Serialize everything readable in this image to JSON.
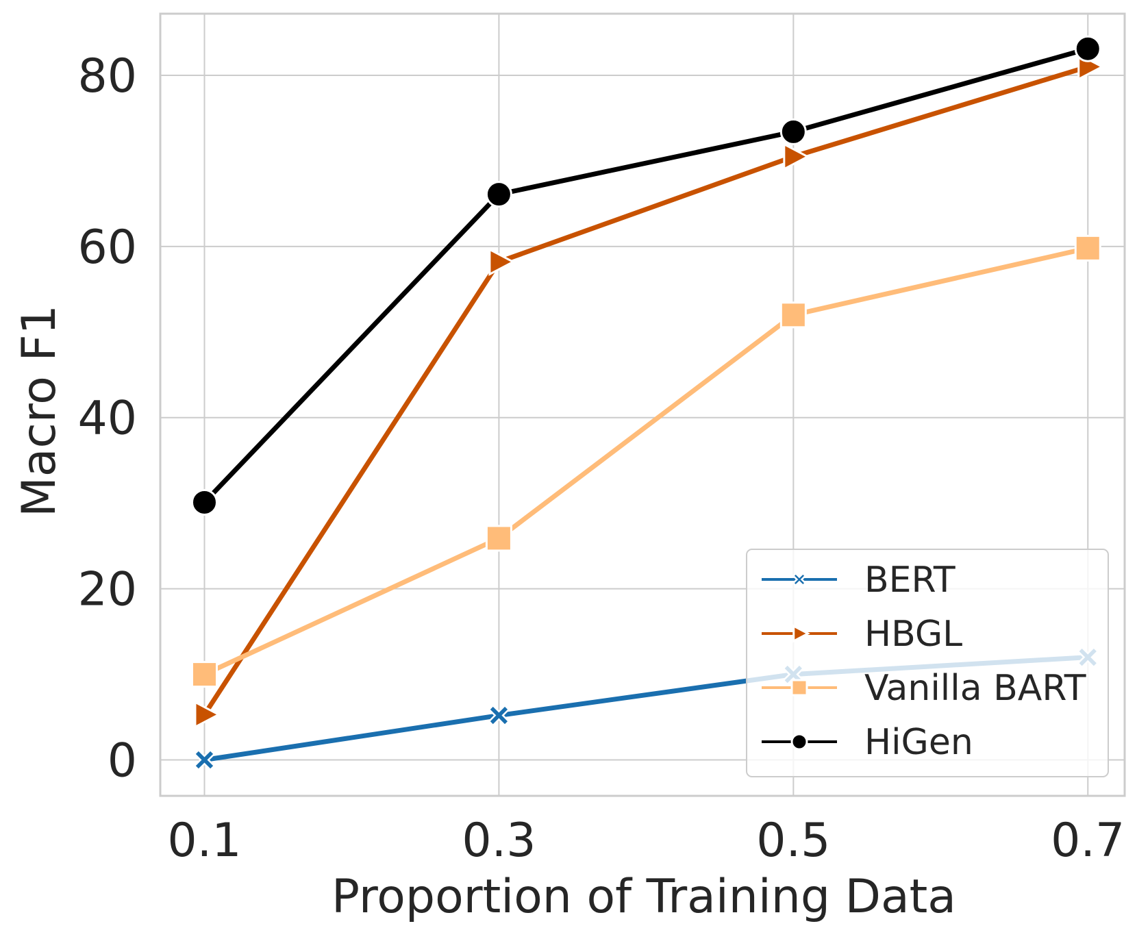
{
  "chart_data": {
    "type": "line",
    "title": "",
    "xlabel": "Proportion of Training Data",
    "ylabel": "Macro F1",
    "x": [
      0.1,
      0.3,
      0.5,
      0.7
    ],
    "x_tick_labels": [
      "0.1",
      "0.3",
      "0.5",
      "0.7"
    ],
    "y_ticks": [
      0,
      20,
      40,
      60,
      80
    ],
    "y_tick_labels": [
      "0",
      "20",
      "40",
      "60",
      "80"
    ],
    "xlim": [
      0.07,
      0.725
    ],
    "ylim": [
      -4.2,
      87.2
    ],
    "grid": true,
    "legend_position": "lower-right",
    "series": [
      {
        "name": "BERT",
        "marker": "x",
        "color": "#1a6faf",
        "values": [
          0.0,
          5.2,
          10.0,
          12.0
        ]
      },
      {
        "name": "HBGL",
        "marker": "triangle-right",
        "color": "#c85200",
        "values": [
          5.3,
          58.2,
          70.5,
          81.0
        ]
      },
      {
        "name": "Vanilla BART",
        "marker": "square",
        "color": "#ffbc79",
        "values": [
          10.0,
          25.9,
          52.0,
          59.8
        ]
      },
      {
        "name": "HiGen",
        "marker": "circle",
        "color": "#000000",
        "values": [
          30.1,
          66.1,
          73.4,
          83.1
        ]
      }
    ]
  }
}
